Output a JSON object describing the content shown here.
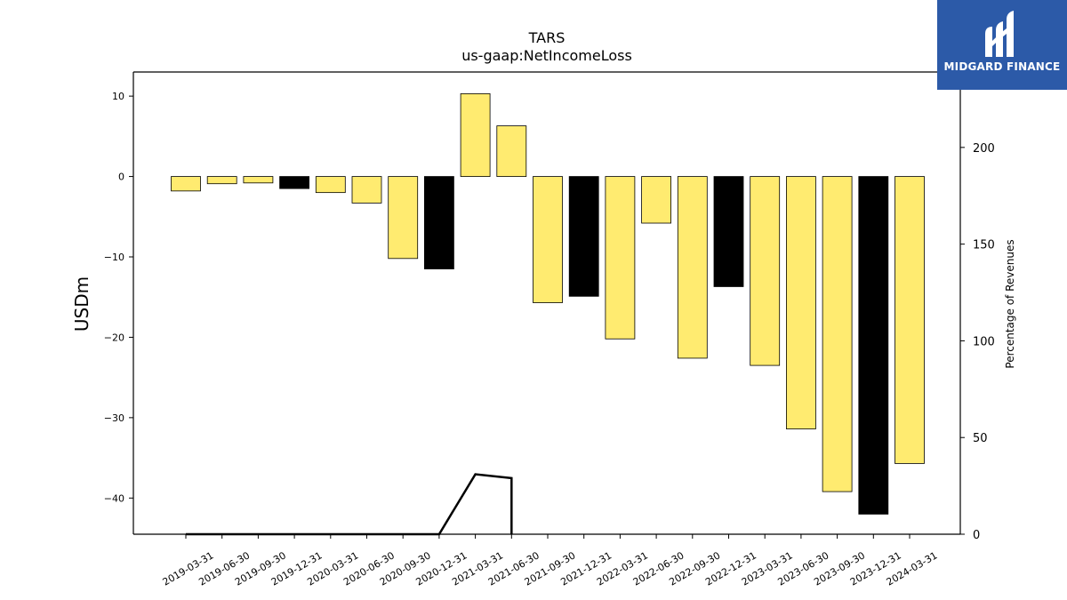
{
  "chart_data": {
    "type": "bar",
    "title": "TARS",
    "subtitle": "us-gaap:NetIncomeLoss",
    "ylabel": "USDm",
    "y2label": "Percentage of Revenues",
    "ylim": [
      -44.5,
      13
    ],
    "y2lim": [
      0,
      239
    ],
    "yticks": [
      10,
      0,
      -10,
      -20,
      -30,
      -40
    ],
    "y2ticks": [
      0,
      50,
      100,
      150,
      200
    ],
    "categories": [
      "2019-03-31",
      "2019-06-30",
      "2019-09-30",
      "2019-12-31",
      "2020-03-31",
      "2020-06-30",
      "2020-09-30",
      "2020-12-31",
      "2021-03-31",
      "2021-06-30",
      "2021-09-30",
      "2021-12-31",
      "2022-03-31",
      "2022-06-30",
      "2022-09-30",
      "2022-12-31",
      "2023-03-31",
      "2023-06-30",
      "2023-09-30",
      "2023-12-31",
      "2024-03-31"
    ],
    "values": [
      -1.8,
      -0.9,
      -0.8,
      -1.5,
      -2.0,
      -3.3,
      -10.2,
      -11.5,
      10.3,
      6.3,
      -15.7,
      -14.9,
      -20.2,
      -5.8,
      -22.6,
      -13.7,
      -23.5,
      -31.4,
      -39.2,
      -42.0,
      -35.7
    ],
    "bar_colors": [
      "#ffeb70",
      "#ffeb70",
      "#ffeb70",
      "#000000",
      "#ffeb70",
      "#ffeb70",
      "#ffeb70",
      "#000000",
      "#ffeb70",
      "#ffeb70",
      "#ffeb70",
      "#000000",
      "#ffeb70",
      "#ffeb70",
      "#ffeb70",
      "#000000",
      "#ffeb70",
      "#ffeb70",
      "#ffeb70",
      "#000000",
      "#ffeb70"
    ],
    "line_series": {
      "axis": "right",
      "color": "#000000",
      "points": [
        {
          "x": "2019-03-31",
          "y": 0
        },
        {
          "x": "2020-12-31",
          "y": 0
        },
        {
          "x": "2021-03-31",
          "y": 31
        },
        {
          "x": "2021-06-30",
          "y": 29
        },
        {
          "x": "2021-06-30",
          "y": 0
        }
      ]
    },
    "grid": false
  },
  "logo": {
    "text": "MIDGARD FINANCE",
    "background": "#2c5aa8"
  }
}
